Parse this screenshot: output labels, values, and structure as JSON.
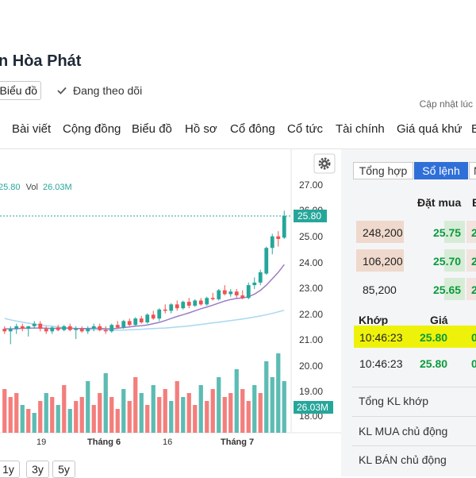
{
  "header": {
    "title": "n Hòa Phát",
    "chart_button": "Biểu đồ",
    "follow_label": "Đang theo dõi",
    "updated_label": "Cập nhật lúc"
  },
  "nav": {
    "items": [
      "Bài viết",
      "Cộng đồng",
      "Biểu đồ",
      "Hồ sơ",
      "Cổ đông",
      "Cổ tức",
      "Tài chính",
      "Giá quá khứ",
      "B"
    ]
  },
  "legend": {
    "price": "25.80",
    "vol_label": "Vol",
    "vol_value": "26.03M"
  },
  "price_axis_labels": [
    "27.00",
    "26.00",
    "25.00",
    "24.00",
    "23.00",
    "22.00",
    "21.00",
    "20.00",
    "19.00",
    "18.00"
  ],
  "badges": {
    "price": "25.80",
    "volume": "26.03M"
  },
  "time_labels": [
    "19",
    "Tháng 6",
    "16",
    "Tháng 7"
  ],
  "range_buttons": [
    "1y",
    "3y",
    "5y"
  ],
  "colors": {
    "up": "#26a69a",
    "down": "#ef5350",
    "ma_fast": "#9c7cc7",
    "ma_slow": "#a8d8f0",
    "accent": "#2f6fd8",
    "highlight": "#eef20a"
  },
  "chart_data": {
    "type": "candlestick",
    "ylim": [
      18,
      27
    ],
    "last_price": 25.8,
    "last_volume": "26.03M",
    "candles": [
      {
        "o": 21.4,
        "h": 21.5,
        "l": 21.2,
        "c": 21.3
      },
      {
        "o": 21.3,
        "h": 21.5,
        "l": 20.8,
        "c": 21.4
      },
      {
        "o": 21.4,
        "h": 21.6,
        "l": 21.2,
        "c": 21.5
      },
      {
        "o": 21.5,
        "h": 21.6,
        "l": 21.3,
        "c": 21.4
      },
      {
        "o": 21.4,
        "h": 21.5,
        "l": 21.1,
        "c": 21.5
      },
      {
        "o": 21.5,
        "h": 21.7,
        "l": 21.4,
        "c": 21.6
      },
      {
        "o": 21.6,
        "h": 21.7,
        "l": 21.3,
        "c": 21.4
      },
      {
        "o": 21.4,
        "h": 21.5,
        "l": 21.2,
        "c": 21.3
      },
      {
        "o": 21.3,
        "h": 21.5,
        "l": 21.2,
        "c": 21.45
      },
      {
        "o": 21.45,
        "h": 21.55,
        "l": 21.3,
        "c": 21.35
      },
      {
        "o": 21.35,
        "h": 21.55,
        "l": 21.3,
        "c": 21.5
      },
      {
        "o": 21.5,
        "h": 21.6,
        "l": 21.3,
        "c": 21.35
      },
      {
        "o": 21.35,
        "h": 21.5,
        "l": 21.0,
        "c": 21.4
      },
      {
        "o": 21.4,
        "h": 21.5,
        "l": 21.25,
        "c": 21.3
      },
      {
        "o": 21.3,
        "h": 21.5,
        "l": 21.2,
        "c": 21.4
      },
      {
        "o": 21.4,
        "h": 21.6,
        "l": 21.3,
        "c": 21.5
      },
      {
        "o": 21.5,
        "h": 21.6,
        "l": 21.3,
        "c": 21.35
      },
      {
        "o": 21.35,
        "h": 21.5,
        "l": 21.2,
        "c": 21.3
      },
      {
        "o": 21.3,
        "h": 21.6,
        "l": 21.25,
        "c": 21.55
      },
      {
        "o": 21.55,
        "h": 21.7,
        "l": 21.4,
        "c": 21.45
      },
      {
        "o": 21.45,
        "h": 21.75,
        "l": 21.4,
        "c": 21.7
      },
      {
        "o": 21.7,
        "h": 21.8,
        "l": 21.5,
        "c": 21.55
      },
      {
        "o": 21.55,
        "h": 21.85,
        "l": 21.5,
        "c": 21.8
      },
      {
        "o": 21.8,
        "h": 21.9,
        "l": 21.6,
        "c": 21.65
      },
      {
        "o": 21.65,
        "h": 22.0,
        "l": 21.6,
        "c": 21.95
      },
      {
        "o": 21.95,
        "h": 22.1,
        "l": 21.75,
        "c": 21.8
      },
      {
        "o": 21.8,
        "h": 22.2,
        "l": 21.7,
        "c": 22.15
      },
      {
        "o": 22.15,
        "h": 22.35,
        "l": 22.0,
        "c": 22.1
      },
      {
        "o": 22.1,
        "h": 22.4,
        "l": 22.0,
        "c": 22.35
      },
      {
        "o": 22.35,
        "h": 22.5,
        "l": 22.1,
        "c": 22.2
      },
      {
        "o": 22.2,
        "h": 22.5,
        "l": 22.15,
        "c": 22.45
      },
      {
        "o": 22.45,
        "h": 22.6,
        "l": 22.2,
        "c": 22.3
      },
      {
        "o": 22.3,
        "h": 22.55,
        "l": 22.25,
        "c": 22.5
      },
      {
        "o": 22.5,
        "h": 22.6,
        "l": 22.3,
        "c": 22.35
      },
      {
        "o": 22.35,
        "h": 22.65,
        "l": 22.3,
        "c": 22.6
      },
      {
        "o": 22.6,
        "h": 22.8,
        "l": 22.5,
        "c": 22.55
      },
      {
        "o": 22.55,
        "h": 22.95,
        "l": 22.5,
        "c": 22.9
      },
      {
        "o": 22.9,
        "h": 23.1,
        "l": 22.7,
        "c": 22.75
      },
      {
        "o": 22.75,
        "h": 22.95,
        "l": 22.65,
        "c": 22.85
      },
      {
        "o": 22.85,
        "h": 22.95,
        "l": 22.6,
        "c": 22.7
      },
      {
        "o": 22.7,
        "h": 22.9,
        "l": 22.55,
        "c": 22.6
      },
      {
        "o": 22.6,
        "h": 23.2,
        "l": 22.55,
        "c": 23.1
      },
      {
        "o": 23.1,
        "h": 23.4,
        "l": 22.95,
        "c": 23.2
      },
      {
        "o": 23.2,
        "h": 23.7,
        "l": 23.1,
        "c": 23.6
      },
      {
        "o": 23.55,
        "h": 24.6,
        "l": 23.5,
        "c": 24.55
      },
      {
        "o": 24.55,
        "h": 25.1,
        "l": 24.3,
        "c": 25.0
      },
      {
        "o": 25.0,
        "h": 25.2,
        "l": 24.6,
        "c": 24.9
      },
      {
        "o": 24.95,
        "h": 26.0,
        "l": 24.9,
        "c": 25.8
      }
    ],
    "volume_max": 20,
    "volumes": [
      {
        "v": 11,
        "up": false
      },
      {
        "v": 9,
        "up": false
      },
      {
        "v": 10,
        "up": false
      },
      {
        "v": 7,
        "up": true
      },
      {
        "v": 6,
        "up": false
      },
      {
        "v": 5,
        "up": true
      },
      {
        "v": 8,
        "up": false
      },
      {
        "v": 10,
        "up": true
      },
      {
        "v": 9,
        "up": false
      },
      {
        "v": 7,
        "up": true
      },
      {
        "v": 12,
        "up": false
      },
      {
        "v": 6,
        "up": true
      },
      {
        "v": 8,
        "up": false
      },
      {
        "v": 9,
        "up": false
      },
      {
        "v": 13,
        "up": true
      },
      {
        "v": 7,
        "up": false
      },
      {
        "v": 10,
        "up": false
      },
      {
        "v": 15,
        "up": true
      },
      {
        "v": 9,
        "up": false
      },
      {
        "v": 6,
        "up": false
      },
      {
        "v": 11,
        "up": true
      },
      {
        "v": 8,
        "up": false
      },
      {
        "v": 14,
        "up": false
      },
      {
        "v": 10,
        "up": true
      },
      {
        "v": 7,
        "up": false
      },
      {
        "v": 12,
        "up": true
      },
      {
        "v": 9,
        "up": false
      },
      {
        "v": 11,
        "up": false
      },
      {
        "v": 8,
        "up": true
      },
      {
        "v": 13,
        "up": false
      },
      {
        "v": 9,
        "up": true
      },
      {
        "v": 10,
        "up": false
      },
      {
        "v": 7,
        "up": false
      },
      {
        "v": 12,
        "up": true
      },
      {
        "v": 8,
        "up": false
      },
      {
        "v": 11,
        "up": false
      },
      {
        "v": 14,
        "up": true
      },
      {
        "v": 9,
        "up": false
      },
      {
        "v": 10,
        "up": false
      },
      {
        "v": 16,
        "up": true
      },
      {
        "v": 11,
        "up": false
      },
      {
        "v": 8,
        "up": false
      },
      {
        "v": 12,
        "up": true
      },
      {
        "v": 10,
        "up": false
      },
      {
        "v": 18,
        "up": true
      },
      {
        "v": 14,
        "up": true
      },
      {
        "v": 20,
        "up": true
      },
      {
        "v": 13,
        "up": true
      }
    ],
    "ma_fast": [
      21.4,
      21.4,
      21.4,
      21.42,
      21.42,
      21.43,
      21.43,
      21.42,
      21.41,
      21.42,
      21.42,
      21.42,
      21.41,
      21.41,
      21.41,
      21.42,
      21.42,
      21.4,
      21.4,
      21.42,
      21.45,
      21.47,
      21.5,
      21.52,
      21.55,
      21.6,
      21.65,
      21.72,
      21.8,
      21.88,
      21.95,
      22.02,
      22.1,
      22.18,
      22.25,
      22.32,
      22.4,
      22.48,
      22.54,
      22.58,
      22.6,
      22.65,
      22.75,
      22.9,
      23.1,
      23.35,
      23.6,
      23.9
    ],
    "ma_slow": [
      21.8,
      21.75,
      21.7,
      21.66,
      21.62,
      21.58,
      21.55,
      21.52,
      21.5,
      21.47,
      21.45,
      21.43,
      21.41,
      21.4,
      21.38,
      21.37,
      21.36,
      21.36,
      21.35,
      21.35,
      21.35,
      21.36,
      21.37,
      21.38,
      21.4,
      21.41,
      21.42,
      21.43,
      21.45,
      21.47,
      21.49,
      21.51,
      21.54,
      21.57,
      21.6,
      21.63,
      21.66,
      21.69,
      21.72,
      21.75,
      21.78,
      21.82,
      21.86,
      21.9,
      21.95,
      22.0,
      22.06,
      22.12
    ]
  },
  "order_book": {
    "tabs": [
      "Tổng hợp",
      "Sổ lệnh",
      "N"
    ],
    "header_bid": "Đặt mua",
    "header_next": "B",
    "rows": [
      {
        "volume": "248,200",
        "price": "25.75",
        "extra": "2"
      },
      {
        "volume": "106,200",
        "price": "25.70",
        "extra": "2"
      },
      {
        "volume": "85,200",
        "price": "25.65",
        "extra": "2"
      }
    ],
    "match_header": {
      "time": "Khớp",
      "price": "Giá"
    },
    "matches": [
      {
        "time": "10:46:23",
        "price": "25.80",
        "extra": "0"
      },
      {
        "time": "10:46:23",
        "price": "25.80",
        "extra": "0"
      }
    ],
    "summary": [
      "Tổng KL khớp",
      "KL MUA chủ động",
      "KL BÁN chủ động"
    ]
  }
}
